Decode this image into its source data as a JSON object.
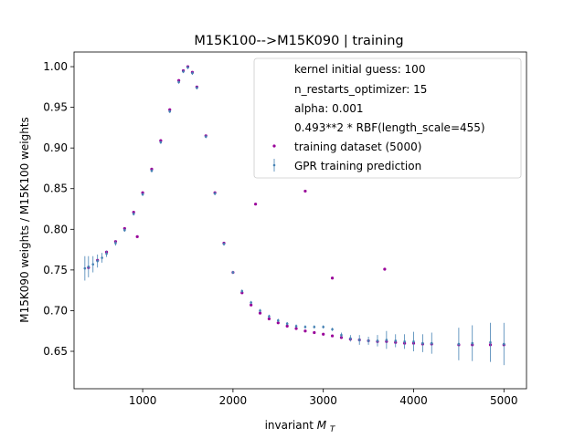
{
  "chart_data": {
    "type": "scatter",
    "title": "M15K100-->M15K090 | training",
    "xlabel": "invariant",
    "xlabel_math": "M",
    "xlabel_sub": "T",
    "ylabel": "M15K090 weights / M15K100 weights",
    "xlim": [
      240,
      5250
    ],
    "ylim": [
      0.604,
      1.018
    ],
    "xticks": [
      1000,
      2000,
      3000,
      4000,
      5000
    ],
    "yticks": [
      0.65,
      0.7,
      0.75,
      0.8,
      0.85,
      0.9,
      0.95,
      1.0
    ],
    "xtick_labels": [
      "1000",
      "2000",
      "3000",
      "4000",
      "5000"
    ],
    "ytick_labels": [
      "0.65",
      "0.70",
      "0.75",
      "0.80",
      "0.85",
      "0.90",
      "0.95",
      "1.00"
    ],
    "grid": false,
    "legend_position": "top-right",
    "legend_info": [
      "kernel initial guess: 100",
      "n_restarts_optimizer: 15",
      "alpha: 0.001",
      "0.493**2 * RBF(length_scale=455)"
    ],
    "series": [
      {
        "name": "training dataset (5000)",
        "marker": "dot",
        "color": "#990099",
        "x": [
          400,
          500,
          600,
          700,
          800,
          900,
          1000,
          1100,
          1200,
          1300,
          1400,
          1450,
          1500,
          1550,
          1600,
          1700,
          1800,
          1900,
          2000,
          2100,
          2200,
          2300,
          2400,
          2500,
          2600,
          2700,
          2800,
          2900,
          3000,
          3100,
          3200,
          3300,
          3400,
          3500,
          3600,
          3700,
          3800,
          3900,
          4000,
          4100,
          4200,
          4500,
          4650,
          4850,
          5000,
          940,
          2250,
          2800,
          3100,
          3680
        ],
        "y": [
          0.753,
          0.762,
          0.772,
          0.785,
          0.801,
          0.821,
          0.845,
          0.874,
          0.909,
          0.947,
          0.983,
          0.995,
          1.0,
          0.993,
          0.975,
          0.915,
          0.845,
          0.783,
          0.747,
          0.722,
          0.707,
          0.697,
          0.69,
          0.685,
          0.681,
          0.678,
          0.675,
          0.673,
          0.671,
          0.669,
          0.667,
          0.665,
          0.664,
          0.663,
          0.662,
          0.662,
          0.661,
          0.66,
          0.66,
          0.659,
          0.659,
          0.658,
          0.658,
          0.658,
          0.658,
          0.791,
          0.831,
          0.847,
          0.74,
          0.751
        ]
      },
      {
        "name": "GPR training prediction",
        "marker": "errorbar",
        "color": "#4682b4",
        "x": [
          360,
          400,
          450,
          500,
          550,
          600,
          700,
          800,
          900,
          1000,
          1100,
          1200,
          1300,
          1400,
          1450,
          1500,
          1550,
          1600,
          1700,
          1800,
          1900,
          2000,
          2100,
          2200,
          2300,
          2400,
          2500,
          2600,
          2700,
          2800,
          2900,
          3000,
          3100,
          3200,
          3300,
          3400,
          3500,
          3600,
          3700,
          3800,
          3900,
          4000,
          4100,
          4200,
          4500,
          4650,
          4850,
          5000
        ],
        "y": [
          0.752,
          0.754,
          0.757,
          0.761,
          0.765,
          0.77,
          0.783,
          0.799,
          0.819,
          0.843,
          0.872,
          0.907,
          0.945,
          0.981,
          0.994,
          0.999,
          0.992,
          0.974,
          0.914,
          0.844,
          0.782,
          0.747,
          0.724,
          0.71,
          0.7,
          0.693,
          0.688,
          0.684,
          0.681,
          0.68,
          0.68,
          0.68,
          0.677,
          0.67,
          0.666,
          0.664,
          0.663,
          0.663,
          0.664,
          0.663,
          0.662,
          0.662,
          0.66,
          0.66,
          0.659,
          0.66,
          0.661,
          0.659
        ],
        "err": [
          0.015,
          0.013,
          0.01,
          0.008,
          0.006,
          0.004,
          0.003,
          0.002,
          0.002,
          0.002,
          0.002,
          0.002,
          0.002,
          0.002,
          0.002,
          0.002,
          0.002,
          0.002,
          0.002,
          0.002,
          0.002,
          0.002,
          0.002,
          0.002,
          0.002,
          0.002,
          0.002,
          0.002,
          0.002,
          0.002,
          0.002,
          0.002,
          0.002,
          0.003,
          0.004,
          0.006,
          0.005,
          0.007,
          0.011,
          0.008,
          0.009,
          0.012,
          0.011,
          0.013,
          0.02,
          0.022,
          0.024,
          0.026
        ]
      }
    ]
  }
}
